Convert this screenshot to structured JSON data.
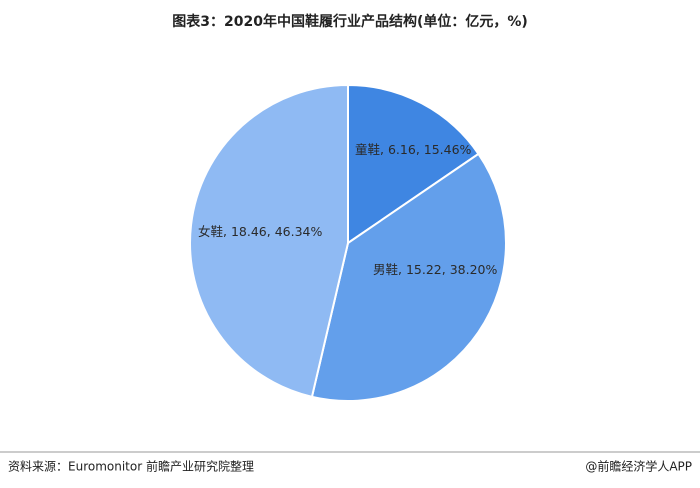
{
  "chart_data": {
    "type": "pie",
    "title": "图表3：2020年中国鞋履行业产品结构(单位：亿元，%)",
    "categories": [
      "童鞋",
      "男鞋",
      "女鞋"
    ],
    "values": [
      6.16,
      15.22,
      18.46
    ],
    "percentages": [
      15.46,
      38.2,
      46.34
    ],
    "percentage_labels": [
      "15.46%",
      "38.20%",
      "46.34%"
    ],
    "colors": [
      "#3f86e2",
      "#639feb",
      "#8fbaf3"
    ],
    "source": "资料来源：Euromonitor 前瞻产业研究院整理",
    "credit": "@前瞻经济学人APP"
  }
}
